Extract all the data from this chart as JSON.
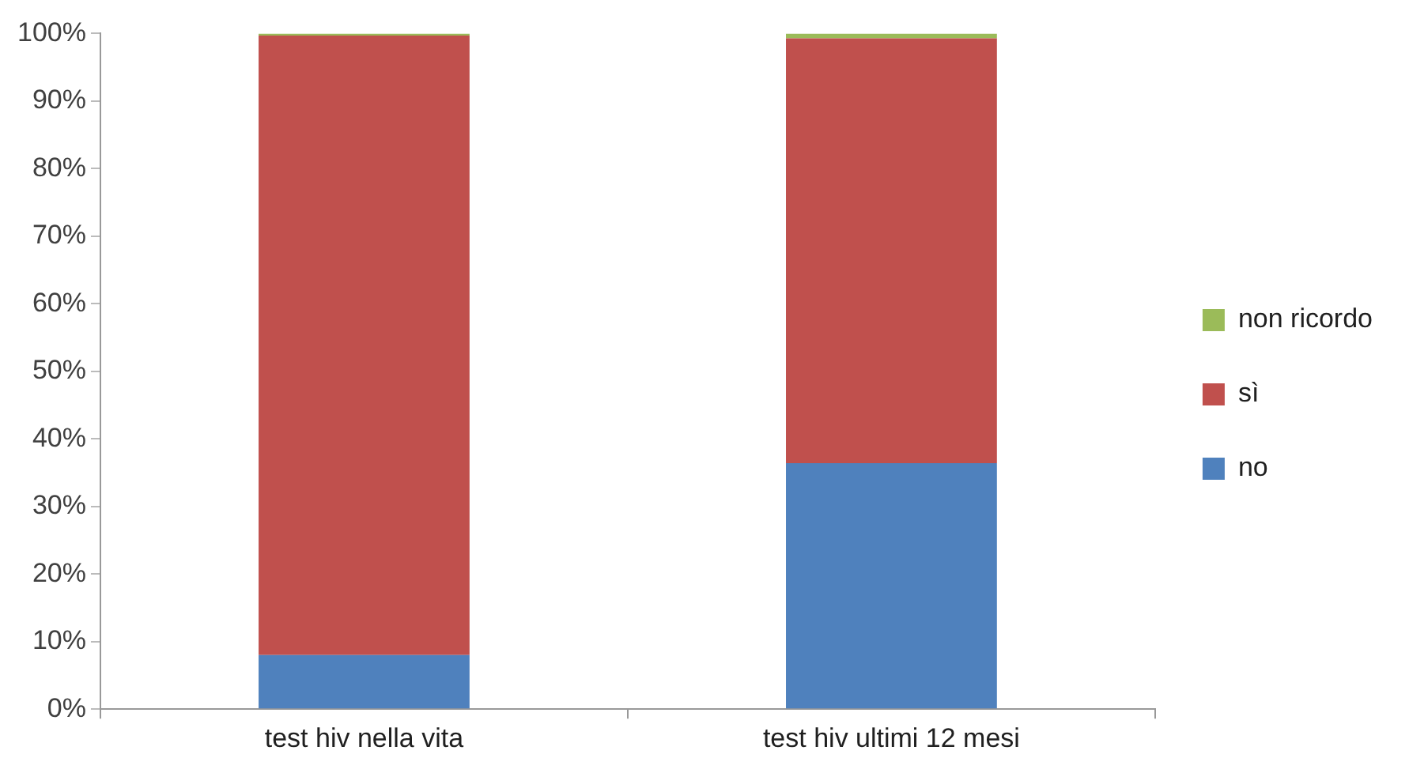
{
  "chart_data": {
    "type": "bar",
    "stacked": true,
    "categories": [
      "test hiv nella vita",
      "test hiv ultimi 12 mesi"
    ],
    "series": [
      {
        "name": "no",
        "color": "#4f81bd",
        "values": [
          8,
          36.4
        ]
      },
      {
        "name": "sì",
        "color": "#c0504d",
        "values": [
          91.7,
          62.9
        ]
      },
      {
        "name": "non ricordo",
        "color": "#9bbb59",
        "values": [
          0.3,
          0.7
        ]
      }
    ],
    "ylim": [
      0,
      100
    ],
    "yticks": [
      {
        "value": 0,
        "label": "0%"
      },
      {
        "value": 10,
        "label": "10%"
      },
      {
        "value": 20,
        "label": "20%"
      },
      {
        "value": 30,
        "label": "30%"
      },
      {
        "value": 40,
        "label": "40%"
      },
      {
        "value": 50,
        "label": "50%"
      },
      {
        "value": 60,
        "label": "60%"
      },
      {
        "value": 70,
        "label": "70%"
      },
      {
        "value": 80,
        "label": "80%"
      },
      {
        "value": 90,
        "label": "90%"
      },
      {
        "value": 100,
        "label": "100%"
      }
    ],
    "grid": false,
    "legend": "right"
  }
}
